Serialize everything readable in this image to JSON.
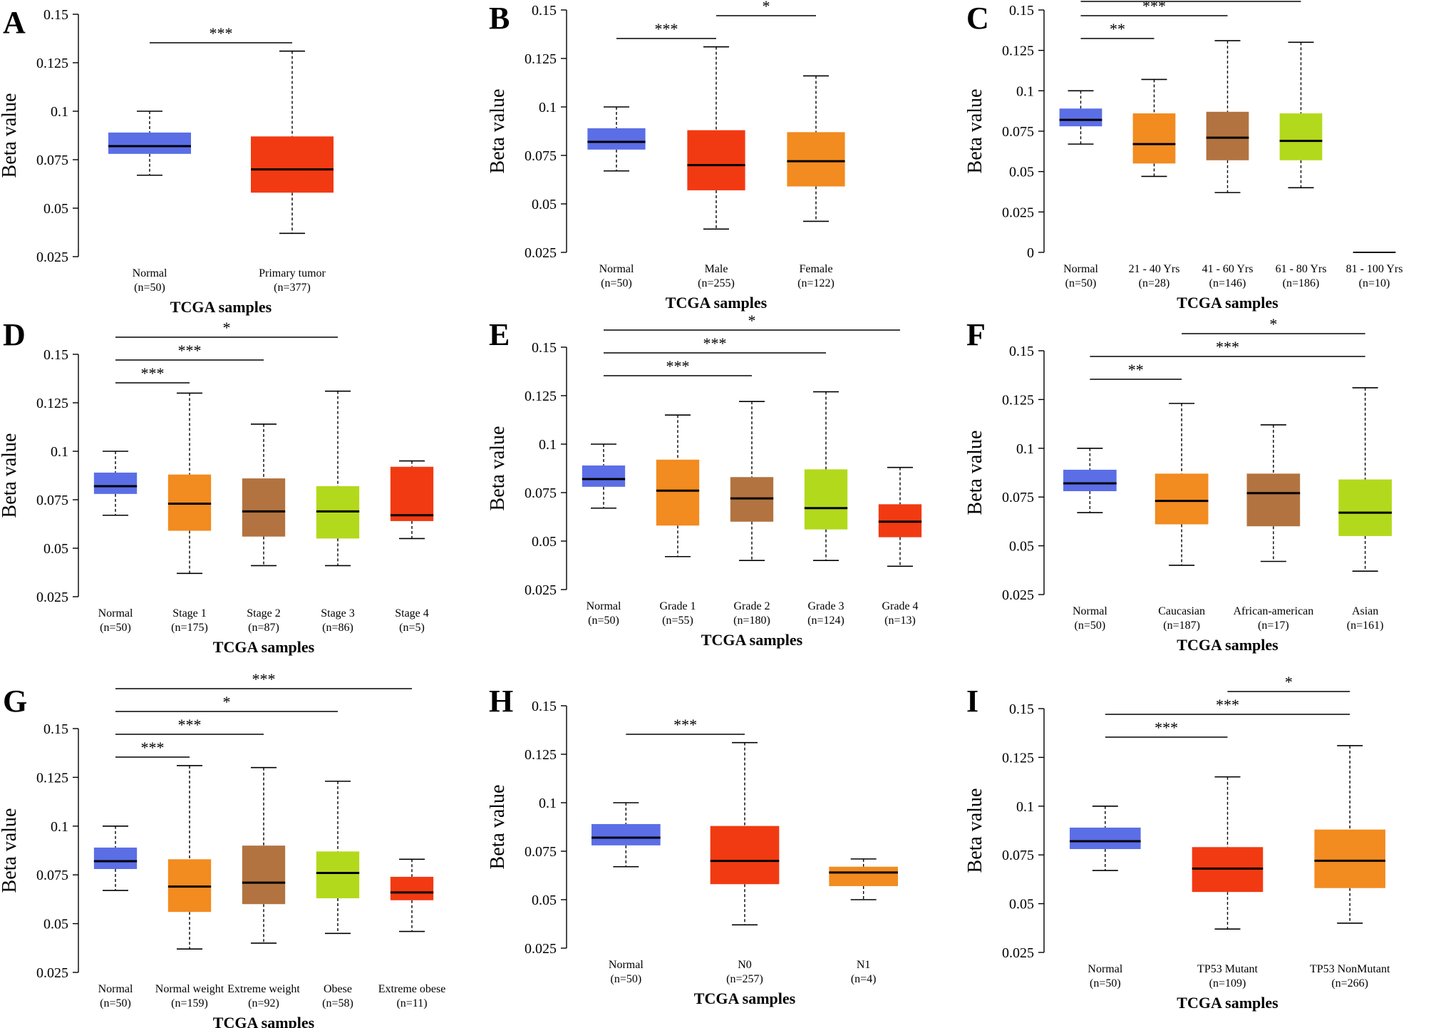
{
  "figure": {
    "type": "multi-panel box plot",
    "xlabel": "TCGA samples",
    "ylabel": "Beta value"
  },
  "colors": {
    "blue": "#5b6ee6",
    "red": "#f23a12",
    "orange": "#f28b20",
    "brown": "#b27340",
    "lime": "#b3d91c",
    "black": "#000000"
  },
  "chart_data": [
    {
      "panel": "A",
      "type": "box",
      "title": "",
      "xlabel": "TCGA samples",
      "ylabel": "Beta value",
      "yticks": [
        "0.025",
        "0.05",
        "0.075",
        "0.1",
        "0.125",
        "0.15"
      ],
      "ylim": [
        0.025,
        0.15
      ],
      "categories": [
        {
          "label": "Normal",
          "n": "(n=50)",
          "color": "blue",
          "min": 0.067,
          "q1": 0.078,
          "median": 0.082,
          "q3": 0.089,
          "max": 0.1
        },
        {
          "label": "Primary tumor",
          "n": "(n=377)",
          "color": "red",
          "min": 0.037,
          "q1": 0.058,
          "median": 0.07,
          "q3": 0.087,
          "max": 0.131
        }
      ],
      "significance": [
        {
          "from": 0,
          "to": 1,
          "label": "***",
          "level": 0
        }
      ]
    },
    {
      "panel": "B",
      "type": "box",
      "title": "",
      "xlabel": "TCGA samples",
      "ylabel": "Beta value",
      "yticks": [
        "0.025",
        "0.05",
        "0.075",
        "0.1",
        "0.125",
        "0.15"
      ],
      "ylim": [
        0.025,
        0.15
      ],
      "categories": [
        {
          "label": "Normal",
          "n": "(n=50)",
          "color": "blue",
          "min": 0.067,
          "q1": 0.078,
          "median": 0.082,
          "q3": 0.089,
          "max": 0.1
        },
        {
          "label": "Male",
          "n": "(n=255)",
          "color": "red",
          "min": 0.037,
          "q1": 0.057,
          "median": 0.07,
          "q3": 0.088,
          "max": 0.131
        },
        {
          "label": "Female",
          "n": "(n=122)",
          "color": "orange",
          "min": 0.041,
          "q1": 0.059,
          "median": 0.072,
          "q3": 0.087,
          "max": 0.116
        }
      ],
      "significance": [
        {
          "from": 0,
          "to": 1,
          "label": "***",
          "level": 0
        },
        {
          "from": 1,
          "to": 2,
          "label": "*",
          "level": 1
        }
      ]
    },
    {
      "panel": "C",
      "type": "box",
      "title": "",
      "xlabel": "TCGA samples",
      "ylabel": "Beta value",
      "yticks": [
        "0",
        "0.025",
        "0.05",
        "0.075",
        "0.1",
        "0.125",
        "0.15"
      ],
      "ylim": [
        0,
        0.15
      ],
      "categories": [
        {
          "label": "Normal",
          "n": "(n=50)",
          "color": "blue",
          "min": 0.067,
          "q1": 0.078,
          "median": 0.082,
          "q3": 0.089,
          "max": 0.1
        },
        {
          "label": "21 - 40 Yrs",
          "n": "(n=28)",
          "color": "orange",
          "min": 0.047,
          "q1": 0.055,
          "median": 0.067,
          "q3": 0.086,
          "max": 0.107
        },
        {
          "label": "41 - 60 Yrs",
          "n": "(n=146)",
          "color": "brown",
          "min": 0.037,
          "q1": 0.057,
          "median": 0.071,
          "q3": 0.087,
          "max": 0.131
        },
        {
          "label": "61 - 80 Yrs",
          "n": "(n=186)",
          "color": "lime",
          "min": 0.04,
          "q1": 0.057,
          "median": 0.069,
          "q3": 0.086,
          "max": 0.13
        },
        {
          "label": "81 - 100 Yrs",
          "n": "(n=10)",
          "color": "black",
          "min": 0,
          "q1": 0,
          "median": 0,
          "q3": 0,
          "max": 0
        }
      ],
      "significance": [
        {
          "from": 0,
          "to": 1,
          "label": "**",
          "level": 0
        },
        {
          "from": 0,
          "to": 2,
          "label": "***",
          "level": 1
        },
        {
          "from": 0,
          "to": 3,
          "label": "***",
          "level": 2
        }
      ]
    },
    {
      "panel": "D",
      "type": "box",
      "title": "",
      "xlabel": "TCGA samples",
      "ylabel": "Beta value",
      "yticks": [
        "0.025",
        "0.05",
        "0.075",
        "0.1",
        "0.125",
        "0.15"
      ],
      "ylim": [
        0.025,
        0.15
      ],
      "categories": [
        {
          "label": "Normal",
          "n": "(n=50)",
          "color": "blue",
          "min": 0.067,
          "q1": 0.078,
          "median": 0.082,
          "q3": 0.089,
          "max": 0.1
        },
        {
          "label": "Stage 1",
          "n": "(n=175)",
          "color": "orange",
          "min": 0.037,
          "q1": 0.059,
          "median": 0.073,
          "q3": 0.088,
          "max": 0.13
        },
        {
          "label": "Stage 2",
          "n": "(n=87)",
          "color": "brown",
          "min": 0.041,
          "q1": 0.056,
          "median": 0.069,
          "q3": 0.086,
          "max": 0.114
        },
        {
          "label": "Stage 3",
          "n": "(n=86)",
          "color": "lime",
          "min": 0.041,
          "q1": 0.055,
          "median": 0.069,
          "q3": 0.082,
          "max": 0.131
        },
        {
          "label": "Stage 4",
          "n": "(n=5)",
          "color": "red",
          "min": 0.055,
          "q1": 0.064,
          "median": 0.067,
          "q3": 0.092,
          "max": 0.095
        }
      ],
      "significance": [
        {
          "from": 0,
          "to": 1,
          "label": "***",
          "level": 0
        },
        {
          "from": 0,
          "to": 2,
          "label": "***",
          "level": 1
        },
        {
          "from": 0,
          "to": 3,
          "label": "*",
          "level": 2
        }
      ]
    },
    {
      "panel": "E",
      "type": "box",
      "title": "",
      "xlabel": "TCGA samples",
      "ylabel": "Beta value",
      "yticks": [
        "0.025",
        "0.05",
        "0.075",
        "0.1",
        "0.125",
        "0.15"
      ],
      "ylim": [
        0.025,
        0.15
      ],
      "categories": [
        {
          "label": "Normal",
          "n": "(n=50)",
          "color": "blue",
          "min": 0.067,
          "q1": 0.078,
          "median": 0.082,
          "q3": 0.089,
          "max": 0.1
        },
        {
          "label": "Grade 1",
          "n": "(n=55)",
          "color": "orange",
          "min": 0.042,
          "q1": 0.058,
          "median": 0.076,
          "q3": 0.092,
          "max": 0.115
        },
        {
          "label": "Grade 2",
          "n": "(n=180)",
          "color": "brown",
          "min": 0.04,
          "q1": 0.06,
          "median": 0.072,
          "q3": 0.083,
          "max": 0.122
        },
        {
          "label": "Grade 3",
          "n": "(n=124)",
          "color": "lime",
          "min": 0.04,
          "q1": 0.056,
          "median": 0.067,
          "q3": 0.087,
          "max": 0.127
        },
        {
          "label": "Grade 4",
          "n": "(n=13)",
          "color": "red",
          "min": 0.037,
          "q1": 0.052,
          "median": 0.06,
          "q3": 0.069,
          "max": 0.088
        }
      ],
      "significance": [
        {
          "from": 0,
          "to": 2,
          "label": "***",
          "level": 0
        },
        {
          "from": 0,
          "to": 3,
          "label": "***",
          "level": 1
        },
        {
          "from": 0,
          "to": 4,
          "label": "*",
          "level": 2
        }
      ]
    },
    {
      "panel": "F",
      "type": "box",
      "title": "",
      "xlabel": "TCGA samples",
      "ylabel": "Beta value",
      "yticks": [
        "0.025",
        "0.05",
        "0.075",
        "0.1",
        "0.125",
        "0.15"
      ],
      "ylim": [
        0.025,
        0.15
      ],
      "categories": [
        {
          "label": "Normal",
          "n": "(n=50)",
          "color": "blue",
          "min": 0.067,
          "q1": 0.078,
          "median": 0.082,
          "q3": 0.089,
          "max": 0.1
        },
        {
          "label": "Caucasian",
          "n": "(n=187)",
          "color": "orange",
          "min": 0.04,
          "q1": 0.061,
          "median": 0.073,
          "q3": 0.087,
          "max": 0.123
        },
        {
          "label": "African-american",
          "n": "(n=17)",
          "color": "brown",
          "min": 0.042,
          "q1": 0.06,
          "median": 0.077,
          "q3": 0.087,
          "max": 0.112
        },
        {
          "label": "Asian",
          "n": "(n=161)",
          "color": "lime",
          "min": 0.037,
          "q1": 0.055,
          "median": 0.067,
          "q3": 0.084,
          "max": 0.131
        }
      ],
      "significance": [
        {
          "from": 0,
          "to": 1,
          "label": "**",
          "level": 0
        },
        {
          "from": 0,
          "to": 3,
          "label": "***",
          "level": 1
        },
        {
          "from": 1,
          "to": 3,
          "label": "*",
          "level": 2
        }
      ]
    },
    {
      "panel": "G",
      "type": "box",
      "title": "",
      "xlabel": "TCGA samples",
      "ylabel": "Beta value",
      "yticks": [
        "0.025",
        "0.05",
        "0.075",
        "0.1",
        "0.125",
        "0.15"
      ],
      "ylim": [
        0.025,
        0.15
      ],
      "categories": [
        {
          "label": "Normal",
          "n": "(n=50)",
          "color": "blue",
          "min": 0.067,
          "q1": 0.078,
          "median": 0.082,
          "q3": 0.089,
          "max": 0.1
        },
        {
          "label": "Normal weight",
          "n": "(n=159)",
          "color": "orange",
          "min": 0.037,
          "q1": 0.056,
          "median": 0.069,
          "q3": 0.083,
          "max": 0.131
        },
        {
          "label": "Extreme weight",
          "n": "(n=92)",
          "color": "brown",
          "min": 0.04,
          "q1": 0.06,
          "median": 0.071,
          "q3": 0.09,
          "max": 0.13
        },
        {
          "label": "Obese",
          "n": "(n=58)",
          "color": "lime",
          "min": 0.045,
          "q1": 0.063,
          "median": 0.076,
          "q3": 0.087,
          "max": 0.123
        },
        {
          "label": "Extreme obese",
          "n": "(n=11)",
          "color": "red",
          "min": 0.046,
          "q1": 0.062,
          "median": 0.066,
          "q3": 0.074,
          "max": 0.083
        }
      ],
      "significance": [
        {
          "from": 0,
          "to": 1,
          "label": "***",
          "level": 0
        },
        {
          "from": 0,
          "to": 2,
          "label": "***",
          "level": 1
        },
        {
          "from": 0,
          "to": 3,
          "label": "*",
          "level": 2
        },
        {
          "from": 0,
          "to": 4,
          "label": "***",
          "level": 3
        }
      ]
    },
    {
      "panel": "H",
      "type": "box",
      "title": "",
      "xlabel": "TCGA samples",
      "ylabel": "Beta value",
      "yticks": [
        "0.025",
        "0.05",
        "0.075",
        "0.1",
        "0.125",
        "0.15"
      ],
      "ylim": [
        0.025,
        0.15
      ],
      "categories": [
        {
          "label": "Normal",
          "n": "(n=50)",
          "color": "blue",
          "min": 0.067,
          "q1": 0.078,
          "median": 0.082,
          "q3": 0.089,
          "max": 0.1
        },
        {
          "label": "N0",
          "n": "(n=257)",
          "color": "red",
          "min": 0.037,
          "q1": 0.058,
          "median": 0.07,
          "q3": 0.088,
          "max": 0.131
        },
        {
          "label": "N1",
          "n": "(n=4)",
          "color": "orange",
          "min": 0.05,
          "q1": 0.057,
          "median": 0.064,
          "q3": 0.067,
          "max": 0.071
        }
      ],
      "significance": [
        {
          "from": 0,
          "to": 1,
          "label": "***",
          "level": 0
        }
      ]
    },
    {
      "panel": "I",
      "type": "box",
      "title": "",
      "xlabel": "TCGA samples",
      "ylabel": "Beta value",
      "yticks": [
        "0.025",
        "0.05",
        "0.075",
        "0.1",
        "0.125",
        "0.15"
      ],
      "ylim": [
        0.025,
        0.15
      ],
      "categories": [
        {
          "label": "Normal",
          "n": "(n=50)",
          "color": "blue",
          "min": 0.067,
          "q1": 0.078,
          "median": 0.082,
          "q3": 0.089,
          "max": 0.1
        },
        {
          "label": "TP53 Mutant",
          "n": "(n=109)",
          "color": "red",
          "min": 0.037,
          "q1": 0.056,
          "median": 0.068,
          "q3": 0.079,
          "max": 0.115
        },
        {
          "label": "TP53 NonMutant",
          "n": "(n=266)",
          "color": "orange",
          "min": 0.04,
          "q1": 0.058,
          "median": 0.072,
          "q3": 0.088,
          "max": 0.131
        }
      ],
      "significance": [
        {
          "from": 0,
          "to": 1,
          "label": "***",
          "level": 0
        },
        {
          "from": 0,
          "to": 2,
          "label": "***",
          "level": 1
        },
        {
          "from": 1,
          "to": 2,
          "label": "*",
          "level": 2
        }
      ]
    }
  ]
}
